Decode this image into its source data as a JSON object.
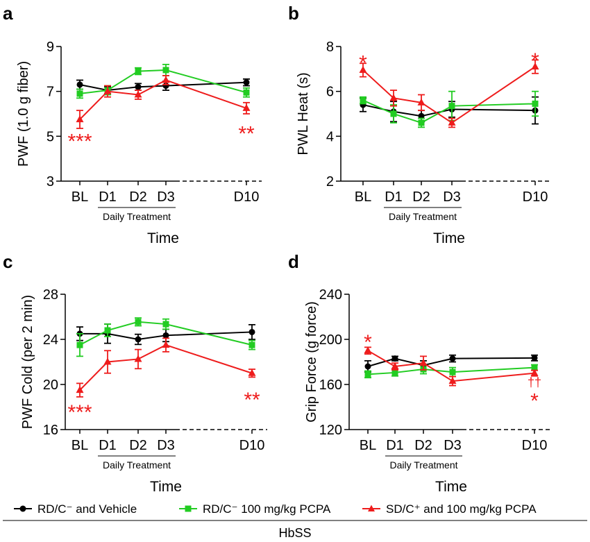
{
  "colors": {
    "black": "#000000",
    "green": "#22cc22",
    "red": "#ee1c1c"
  },
  "series": [
    {
      "name": "RD/C⁻ and Vehicle",
      "color": "#000000",
      "marker": "circle"
    },
    {
      "name": "RD/C⁻ 100 mg/kg PCPA",
      "color": "#22cc22",
      "marker": "square"
    },
    {
      "name": "SD/C⁺ and 100 mg/kg PCPA",
      "color": "#ee1c1c",
      "marker": "triangle"
    }
  ],
  "footer_label": "HbSS",
  "categories": [
    "BL",
    "D1",
    "D2",
    "D3",
    "D10"
  ],
  "bracket_label": "Daily Treatment",
  "xlabel": "Time",
  "chart_data": [
    {
      "panel": "a",
      "type": "line",
      "ylabel": "PWF (1.0 g fiber)",
      "ylim": [
        3,
        9
      ],
      "yticks": [
        "3",
        "5",
        "7",
        "9"
      ],
      "series": [
        {
          "values": [
            7.3,
            7.05,
            7.2,
            7.25,
            7.4
          ],
          "errors": [
            0.2,
            0.15,
            0.15,
            0.2,
            0.15
          ]
        },
        {
          "values": [
            6.9,
            7.05,
            7.9,
            7.95,
            6.95
          ],
          "errors": [
            0.2,
            0.2,
            0.15,
            0.25,
            0.2
          ]
        },
        {
          "values": [
            5.75,
            7.0,
            6.85,
            7.5,
            6.25
          ],
          "errors": [
            0.4,
            0.25,
            0.2,
            0.2,
            0.25
          ]
        }
      ],
      "annotations": [
        {
          "text": "***",
          "category": "BL",
          "y": 4.9
        },
        {
          "text": "**",
          "category": "D10",
          "y": 5.25
        }
      ]
    },
    {
      "panel": "b",
      "type": "line",
      "ylabel": "PWL Heat (s)",
      "ylim": [
        2,
        8
      ],
      "yticks": [
        "2",
        "4",
        "6",
        "8"
      ],
      "series": [
        {
          "values": [
            5.4,
            5.1,
            4.9,
            5.2,
            5.15
          ],
          "errors": [
            0.3,
            0.45,
            0.25,
            0.35,
            0.6
          ]
        },
        {
          "values": [
            5.6,
            5.0,
            4.6,
            5.35,
            5.45
          ],
          "errors": [
            0.15,
            0.4,
            0.2,
            0.65,
            0.55
          ]
        },
        {
          "values": [
            6.95,
            5.7,
            5.5,
            4.6,
            7.1
          ],
          "errors": [
            0.3,
            0.35,
            0.35,
            0.2,
            0.3
          ]
        }
      ],
      "annotations": [
        {
          "text": "*",
          "category": "BL",
          "y": 7.4
        },
        {
          "text": "*",
          "category": "D10",
          "y": 7.5
        }
      ]
    },
    {
      "panel": "c",
      "type": "line",
      "ylabel": "PWF Cold (per 2 min)",
      "ylim": [
        16,
        28
      ],
      "yticks": [
        "16",
        "20",
        "24",
        "28"
      ],
      "series": [
        {
          "values": [
            24.5,
            24.5,
            24.0,
            24.35,
            24.65
          ],
          "errors": [
            0.6,
            0.85,
            0.45,
            0.55,
            0.65
          ]
        },
        {
          "values": [
            23.5,
            24.8,
            25.55,
            25.35,
            23.5
          ],
          "errors": [
            1.0,
            0.55,
            0.35,
            0.45,
            0.4
          ]
        },
        {
          "values": [
            19.5,
            22.0,
            22.25,
            23.5,
            21.0
          ],
          "errors": [
            0.6,
            1.0,
            0.85,
            0.6,
            0.35
          ]
        }
      ],
      "annotations": [
        {
          "text": "***",
          "category": "BL",
          "y": 17.8
        },
        {
          "text": "**",
          "category": "D10",
          "y": 18.9
        }
      ]
    },
    {
      "panel": "d",
      "type": "line",
      "ylabel": "Grip Force (g force)",
      "ylim": [
        120,
        240
      ],
      "yticks": [
        "120",
        "160",
        "200",
        "240"
      ],
      "series": [
        {
          "values": [
            176,
            183,
            177,
            183,
            183.5
          ],
          "errors": [
            5,
            2,
            4,
            3,
            2.5
          ]
        },
        {
          "values": [
            169,
            170.5,
            173.5,
            171,
            175
          ],
          "errors": [
            3,
            3,
            4,
            4,
            2.5
          ]
        },
        {
          "values": [
            190,
            176,
            179,
            163,
            170
          ],
          "errors": [
            3,
            3,
            6,
            4,
            2.5
          ]
        }
      ],
      "annotations": [
        {
          "text": "*",
          "category": "BL",
          "y": 200
        },
        {
          "text": "††",
          "category": "D10",
          "y": 162
        },
        {
          "text": "*",
          "category": "D10",
          "y": 148
        }
      ]
    }
  ]
}
